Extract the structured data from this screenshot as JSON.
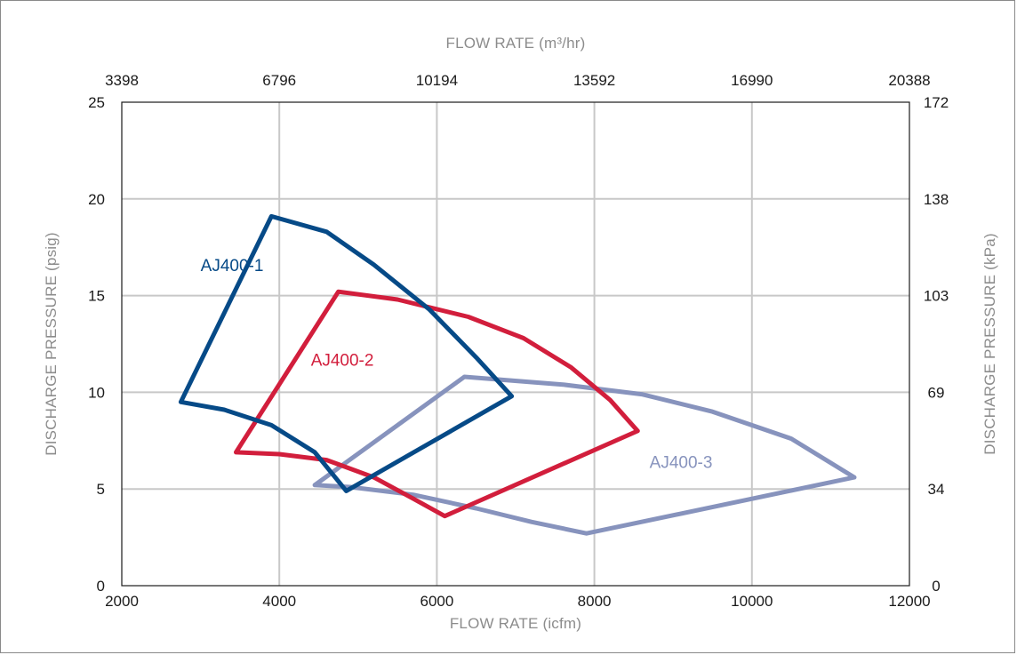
{
  "chart_data": {
    "type": "line",
    "xlabel": "FLOW RATE (icfm)",
    "ylabel": "DISCHARGE PRESSURE (psig)",
    "x2label": "FLOW RATE (m³/hr)",
    "y2label": "DISCHARGE PRESSURE (kPa)",
    "xlim": [
      2000,
      12000
    ],
    "ylim": [
      0,
      25
    ],
    "x_ticks": [
      2000,
      4000,
      6000,
      8000,
      10000,
      12000
    ],
    "y_ticks": [
      0,
      5,
      10,
      15,
      20,
      25
    ],
    "x2_ticks": [
      "3398",
      "6796",
      "10194",
      "13592",
      "16990",
      "20388"
    ],
    "y2_ticks": [
      "0",
      "34",
      "69",
      "103",
      "138",
      "172"
    ],
    "grid": true,
    "series": [
      {
        "name": "AJ400-3",
        "color": "#8793bd",
        "points": [
          [
            4450,
            5.2
          ],
          [
            4900,
            5.1
          ],
          [
            5700,
            4.7
          ],
          [
            6500,
            4.0
          ],
          [
            7200,
            3.3
          ],
          [
            7900,
            2.7
          ],
          [
            11300,
            5.6
          ],
          [
            10500,
            7.6
          ],
          [
            9500,
            9.0
          ],
          [
            8600,
            9.9
          ],
          [
            7600,
            10.4
          ],
          [
            6350,
            10.8
          ],
          [
            4450,
            5.2
          ]
        ]
      },
      {
        "name": "AJ400-2",
        "color": "#d21e3c",
        "points": [
          [
            3450,
            6.9
          ],
          [
            4000,
            6.8
          ],
          [
            4600,
            6.5
          ],
          [
            5200,
            5.6
          ],
          [
            5700,
            4.5
          ],
          [
            6100,
            3.6
          ],
          [
            8550,
            8.0
          ],
          [
            8200,
            9.6
          ],
          [
            7700,
            11.3
          ],
          [
            7100,
            12.8
          ],
          [
            6400,
            13.9
          ],
          [
            5500,
            14.8
          ],
          [
            4750,
            15.2
          ],
          [
            3450,
            6.9
          ]
        ]
      },
      {
        "name": "AJ400-1",
        "color": "#064a87",
        "points": [
          [
            2750,
            9.5
          ],
          [
            3300,
            9.1
          ],
          [
            3900,
            8.3
          ],
          [
            4450,
            6.9
          ],
          [
            4850,
            4.9
          ],
          [
            6950,
            9.8
          ],
          [
            6500,
            11.8
          ],
          [
            5900,
            14.3
          ],
          [
            5200,
            16.6
          ],
          [
            4600,
            18.3
          ],
          [
            3900,
            19.1
          ],
          [
            2750,
            9.5
          ]
        ]
      }
    ],
    "annotations": [
      {
        "text": "AJ400-1",
        "x": 3400,
        "y": 16.6,
        "color": "#064a87"
      },
      {
        "text": "AJ400-2",
        "x": 4800,
        "y": 11.7,
        "color": "#d21e3c"
      },
      {
        "text": "AJ400-3",
        "x": 9100,
        "y": 6.4,
        "color": "#8793bd"
      }
    ]
  }
}
